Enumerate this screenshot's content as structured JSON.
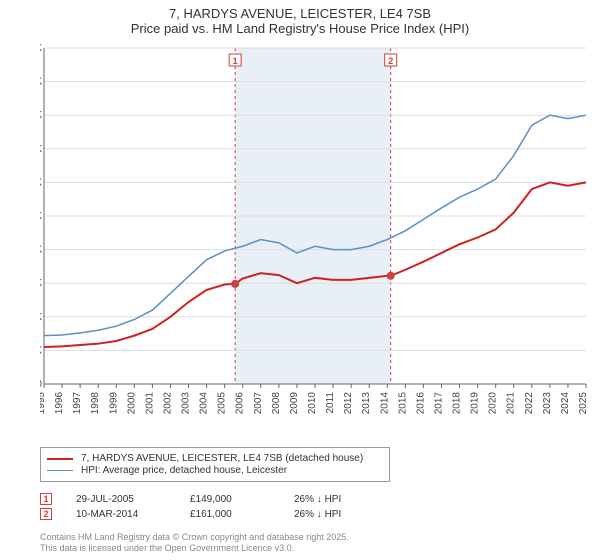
{
  "title": {
    "line1": "7, HARDYS AVENUE, LEICESTER, LE4 7SB",
    "line2": "Price paid vs. HM Land Registry's House Price Index (HPI)"
  },
  "chart": {
    "type": "line",
    "background_color": "#ffffff",
    "grid_color": "#dddddd",
    "axis_color": "#666666",
    "label_color": "#444444",
    "label_fontsize": 10,
    "x": {
      "min": 1995,
      "max": 2025,
      "tick_step": 1
    },
    "y": {
      "min": 0,
      "max": 500000,
      "tick_step": 50000,
      "tick_prefix": "£",
      "tick_suffix": "K",
      "tick_divisor": 1000
    },
    "shaded": {
      "start": 2005.58,
      "end": 2014.19,
      "fill": "#e8eff6",
      "border": "#d04040",
      "border_dash": "3,3"
    },
    "markers": [
      {
        "label": "1",
        "x": 2005.58,
        "y": 149000,
        "color": "#d04040"
      },
      {
        "label": "2",
        "x": 2014.19,
        "y": 161000,
        "color": "#d04040"
      }
    ],
    "marker_label_bg": "#ffffff",
    "marker_label_fontsize": 9,
    "series": [
      {
        "name": "price_paid",
        "label": "7, HARDYS AVENUE, LEICESTER, LE4 7SB (detached house)",
        "color": "#d02020",
        "line_width": 2,
        "points": [
          [
            1995,
            55000
          ],
          [
            1996,
            56000
          ],
          [
            1997,
            58000
          ],
          [
            1998,
            60000
          ],
          [
            1999,
            64000
          ],
          [
            2000,
            72000
          ],
          [
            2001,
            82000
          ],
          [
            2002,
            100000
          ],
          [
            2003,
            122000
          ],
          [
            2004,
            140000
          ],
          [
            2005,
            148000
          ],
          [
            2005.58,
            149000
          ],
          [
            2006,
            157000
          ],
          [
            2007,
            165000
          ],
          [
            2008,
            162000
          ],
          [
            2009,
            150000
          ],
          [
            2010,
            158000
          ],
          [
            2011,
            155000
          ],
          [
            2012,
            155000
          ],
          [
            2013,
            158000
          ],
          [
            2014,
            161000
          ],
          [
            2014.19,
            161000
          ],
          [
            2015,
            170000
          ],
          [
            2016,
            182000
          ],
          [
            2017,
            195000
          ],
          [
            2018,
            208000
          ],
          [
            2019,
            218000
          ],
          [
            2020,
            230000
          ],
          [
            2021,
            255000
          ],
          [
            2022,
            290000
          ],
          [
            2023,
            300000
          ],
          [
            2024,
            295000
          ],
          [
            2025,
            300000
          ]
        ]
      },
      {
        "name": "hpi",
        "label": "HPI: Average price, detached house, Leicester",
        "color": "#5b8fc7",
        "line_width": 1.5,
        "points": [
          [
            1995,
            72000
          ],
          [
            1996,
            73000
          ],
          [
            1997,
            76000
          ],
          [
            1998,
            80000
          ],
          [
            1999,
            86000
          ],
          [
            2000,
            96000
          ],
          [
            2001,
            110000
          ],
          [
            2002,
            135000
          ],
          [
            2003,
            160000
          ],
          [
            2004,
            185000
          ],
          [
            2005,
            198000
          ],
          [
            2006,
            205000
          ],
          [
            2007,
            215000
          ],
          [
            2008,
            210000
          ],
          [
            2009,
            195000
          ],
          [
            2010,
            205000
          ],
          [
            2011,
            200000
          ],
          [
            2012,
            200000
          ],
          [
            2013,
            205000
          ],
          [
            2014,
            215000
          ],
          [
            2015,
            228000
          ],
          [
            2016,
            245000
          ],
          [
            2017,
            262000
          ],
          [
            2018,
            278000
          ],
          [
            2019,
            290000
          ],
          [
            2020,
            305000
          ],
          [
            2021,
            340000
          ],
          [
            2022,
            385000
          ],
          [
            2023,
            400000
          ],
          [
            2024,
            395000
          ],
          [
            2025,
            400000
          ]
        ]
      }
    ]
  },
  "legend": {
    "items": [
      {
        "series": "price_paid"
      },
      {
        "series": "hpi"
      }
    ]
  },
  "sales": [
    {
      "marker": "1",
      "date": "29-JUL-2005",
      "price": "£149,000",
      "delta": "26% ↓ HPI",
      "color": "#d04040"
    },
    {
      "marker": "2",
      "date": "10-MAR-2014",
      "price": "£161,000",
      "delta": "26% ↓ HPI",
      "color": "#d04040"
    }
  ],
  "footer": {
    "line1": "Contains HM Land Registry data © Crown copyright and database right 2025.",
    "line2": "This data is licensed under the Open Government Licence v3.0."
  }
}
